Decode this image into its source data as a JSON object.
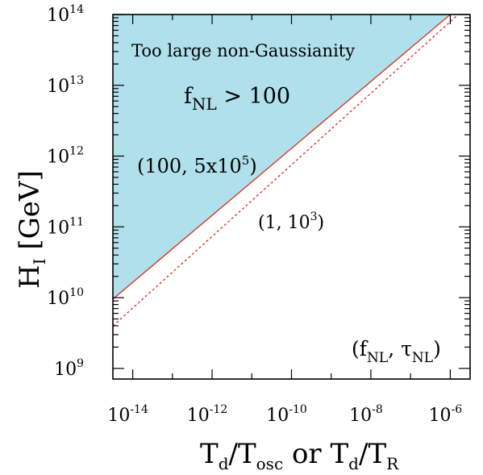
{
  "chart_data": {
    "type": "line",
    "xlabel": {
      "parts": [
        {
          "t": "T",
          "s": ""
        },
        {
          "t": "d",
          "s": "sub"
        },
        {
          "t": "/T",
          "s": ""
        },
        {
          "t": "osc",
          "s": "sub"
        },
        {
          "t": " or T",
          "s": ""
        },
        {
          "t": "d",
          "s": "sub"
        },
        {
          "t": "/T",
          "s": ""
        },
        {
          "t": "R",
          "s": "sub"
        }
      ]
    },
    "ylabel": {
      "parts": [
        {
          "t": "H",
          "s": ""
        },
        {
          "t": "I",
          "s": "sub"
        },
        {
          "t": " [GeV]",
          "s": ""
        }
      ]
    },
    "xscale": "log",
    "yscale": "log",
    "xlim_exp": [
      -14.5,
      -5.5
    ],
    "ylim_exp": [
      8.85,
      14
    ],
    "xticks": [
      {
        "exp": -14,
        "base": "10",
        "sup": "-14"
      },
      {
        "exp": -12,
        "base": "10",
        "sup": "-12"
      },
      {
        "exp": -10,
        "base": "10",
        "sup": "-10"
      },
      {
        "exp": -8,
        "base": "10",
        "sup": "-8"
      },
      {
        "exp": -6,
        "base": "10",
        "sup": "-6"
      }
    ],
    "yticks": [
      {
        "exp": 9,
        "base": "10",
        "sup": "9"
      },
      {
        "exp": 10,
        "base": "10",
        "sup": "10"
      },
      {
        "exp": 11,
        "base": "10",
        "sup": "11"
      },
      {
        "exp": 12,
        "base": "10",
        "sup": "12"
      },
      {
        "exp": 13,
        "base": "10",
        "sup": "13"
      },
      {
        "exp": 14,
        "base": "10",
        "sup": "14"
      }
    ],
    "series": [
      {
        "label_id": "s100",
        "style": "solid",
        "color": "#d63a2a",
        "x_exp": [
          -14.5,
          -6.0
        ],
        "y_exp": [
          9.98,
          14.0
        ]
      },
      {
        "label_id": "s1",
        "style": "dotted",
        "color": "#d63a2a",
        "x_exp": [
          -14.5,
          -5.8
        ],
        "y_exp": [
          9.6,
          14.0
        ]
      }
    ],
    "region": {
      "color": "#b0e0ec",
      "label": "Too large non-Gaussianity",
      "bound_series": "s100"
    },
    "annotations": {
      "fnl_condition": {
        "f": "f",
        "sub": "NL",
        "rest": " > 100"
      },
      "series_100": {
        "pre": "(100, 5x10",
        "sup": "5",
        "post": ")"
      },
      "series_1": {
        "pre": "(1, 10",
        "sup": "3",
        "post": ")"
      },
      "legend_pair": {
        "open": "(f",
        "sub1": "NL",
        "mid": ", τ",
        "sub2": "NL",
        "close": ")"
      }
    },
    "grid": false
  }
}
